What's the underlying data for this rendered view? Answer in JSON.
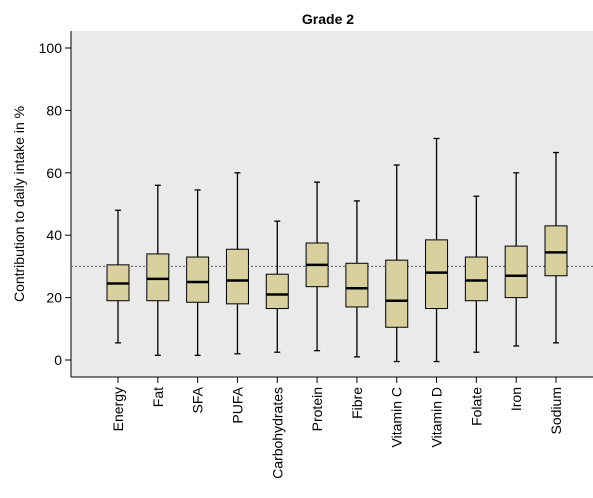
{
  "chart_data": {
    "type": "boxplot",
    "title": "Grade 2",
    "ylabel": "Contribution to daily intake in %",
    "xlabel": "",
    "ylim": [
      -5,
      105
    ],
    "yticks": [
      0,
      20,
      40,
      60,
      80,
      100
    ],
    "reference_line": 30,
    "grid": false,
    "box_color": "#d8d19e",
    "plot_background": "#eaeaea",
    "categories": [
      "Energy",
      "Fat",
      "SFA",
      "PUFA",
      "Carbohydrates",
      "Protein",
      "Fibre",
      "Vitamin C",
      "Vitamin D",
      "Folate",
      "Iron",
      "Sodium"
    ],
    "boxes": [
      {
        "min": 5.5,
        "q1": 19,
        "median": 24.5,
        "q3": 30.5,
        "max": 48
      },
      {
        "min": 1.5,
        "q1": 19,
        "median": 26,
        "q3": 34,
        "max": 56
      },
      {
        "min": 1.5,
        "q1": 18.5,
        "median": 25,
        "q3": 33,
        "max": 54.5
      },
      {
        "min": 2,
        "q1": 18,
        "median": 25.5,
        "q3": 35.5,
        "max": 60
      },
      {
        "min": 2.5,
        "q1": 16.5,
        "median": 21,
        "q3": 27.5,
        "max": 44.5
      },
      {
        "min": 3,
        "q1": 23.5,
        "median": 30.5,
        "q3": 37.5,
        "max": 57
      },
      {
        "min": 1,
        "q1": 17,
        "median": 23,
        "q3": 31,
        "max": 51
      },
      {
        "min": -0.5,
        "q1": 10.5,
        "median": 19,
        "q3": 32,
        "max": 62.5
      },
      {
        "min": -0.5,
        "q1": 16.5,
        "median": 28,
        "q3": 38.5,
        "max": 71
      },
      {
        "min": 2.5,
        "q1": 19,
        "median": 25.5,
        "q3": 33,
        "max": 52.5
      },
      {
        "min": 4.5,
        "q1": 20,
        "median": 27,
        "q3": 36.5,
        "max": 60
      },
      {
        "min": 5.5,
        "q1": 27,
        "median": 34.5,
        "q3": 43,
        "max": 66.5
      }
    ]
  }
}
